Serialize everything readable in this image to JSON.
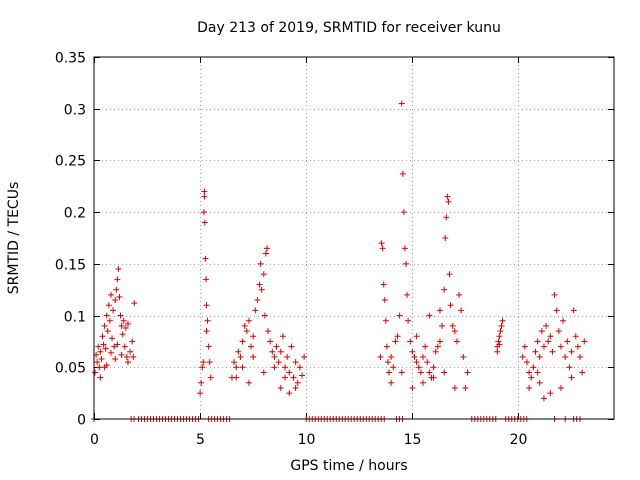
{
  "chart_data": {
    "type": "scatter",
    "title": "Day 213 of 2019, SRMTID for receiver kunu",
    "xlabel": "GPS time / hours",
    "ylabel": "SRMTID / TECUs",
    "xlim": [
      0,
      24.5
    ],
    "ylim": [
      0,
      0.35
    ],
    "xticks": [
      0,
      5,
      10,
      15,
      20
    ],
    "xtick_labels": [
      "0",
      "5",
      "10",
      "15",
      "20"
    ],
    "yticks": [
      0,
      0.05,
      0.1,
      0.15,
      0.2,
      0.25,
      0.3,
      0.35
    ],
    "ytick_labels": [
      "0",
      "0.05",
      "0.1",
      "0.15",
      "0.2",
      "0.25",
      "0.3",
      "0.35"
    ],
    "grid": true,
    "marker": "+",
    "color": "#e00000",
    "series": [
      {
        "name": "SRMTID",
        "points": [
          [
            0.05,
            0.045
          ],
          [
            0.1,
            0.062
          ],
          [
            0.15,
            0.055
          ],
          [
            0.2,
            0.07
          ],
          [
            0.25,
            0.05
          ],
          [
            0.3,
            0.065
          ],
          [
            0.35,
            0.058
          ],
          [
            0.4,
            0.08
          ],
          [
            0.45,
            0.072
          ],
          [
            0.5,
            0.09
          ],
          [
            0.55,
            0.068
          ],
          [
            0.6,
            0.1
          ],
          [
            0.65,
            0.085
          ],
          [
            0.7,
            0.11
          ],
          [
            0.75,
            0.095
          ],
          [
            0.8,
            0.12
          ],
          [
            0.85,
            0.078
          ],
          [
            0.9,
            0.105
          ],
          [
            0.95,
            0.07
          ],
          [
            1.0,
            0.115
          ],
          [
            1.05,
            0.125
          ],
          [
            1.1,
            0.135
          ],
          [
            1.15,
            0.145
          ],
          [
            1.2,
            0.118
          ],
          [
            1.25,
            0.1
          ],
          [
            1.3,
            0.09
          ],
          [
            1.35,
            0.082
          ],
          [
            1.4,
            0.095
          ],
          [
            1.45,
            0.07
          ],
          [
            1.5,
            0.088
          ],
          [
            1.55,
            0.06
          ],
          [
            1.6,
            0.092
          ],
          [
            1.7,
            0.065
          ],
          [
            1.8,
            0.075
          ],
          [
            1.85,
            0.06
          ],
          [
            1.9,
            0.112
          ],
          [
            0.3,
            0.04
          ],
          [
            0.6,
            0.052
          ],
          [
            1.0,
            0.058
          ],
          [
            1.3,
            0.062
          ],
          [
            0.8,
            0.064
          ],
          [
            1.1,
            0.072
          ],
          [
            0.5,
            0.05
          ],
          [
            1.6,
            0.055
          ],
          [
            5.0,
            0.025
          ],
          [
            5.05,
            0.035
          ],
          [
            5.1,
            0.05
          ],
          [
            5.15,
            0.055
          ],
          [
            5.18,
            0.2
          ],
          [
            5.2,
            0.22
          ],
          [
            5.22,
            0.19
          ],
          [
            5.25,
            0.155
          ],
          [
            5.28,
            0.135
          ],
          [
            5.3,
            0.085
          ],
          [
            5.35,
            0.095
          ],
          [
            5.4,
            0.07
          ],
          [
            5.45,
            0.055
          ],
          [
            5.5,
            0.04
          ],
          [
            5.2,
            0.215
          ],
          [
            5.3,
            0.11
          ],
          [
            6.5,
            0.04
          ],
          [
            6.6,
            0.055
          ],
          [
            6.7,
            0.05
          ],
          [
            6.8,
            0.065
          ],
          [
            6.9,
            0.06
          ],
          [
            7.0,
            0.075
          ],
          [
            7.1,
            0.09
          ],
          [
            7.2,
            0.085
          ],
          [
            7.3,
            0.095
          ],
          [
            7.4,
            0.07
          ],
          [
            7.5,
            0.08
          ],
          [
            7.6,
            0.105
          ],
          [
            7.7,
            0.115
          ],
          [
            7.8,
            0.13
          ],
          [
            7.85,
            0.15
          ],
          [
            7.9,
            0.125
          ],
          [
            8.0,
            0.14
          ],
          [
            8.05,
            0.1
          ],
          [
            8.1,
            0.16
          ],
          [
            8.15,
            0.165
          ],
          [
            8.2,
            0.085
          ],
          [
            8.3,
            0.075
          ],
          [
            8.4,
            0.065
          ],
          [
            8.5,
            0.06
          ],
          [
            8.6,
            0.07
          ],
          [
            8.7,
            0.055
          ],
          [
            8.8,
            0.065
          ],
          [
            8.9,
            0.08
          ],
          [
            9.0,
            0.05
          ],
          [
            9.1,
            0.06
          ],
          [
            9.2,
            0.045
          ],
          [
            9.3,
            0.07
          ],
          [
            9.4,
            0.04
          ],
          [
            9.5,
            0.055
          ],
          [
            9.6,
            0.035
          ],
          [
            9.7,
            0.05
          ],
          [
            9.8,
            0.042
          ],
          [
            9.9,
            0.06
          ],
          [
            6.7,
            0.04
          ],
          [
            7.0,
            0.05
          ],
          [
            7.5,
            0.06
          ],
          [
            8.0,
            0.045
          ],
          [
            8.5,
            0.05
          ],
          [
            9.0,
            0.04
          ],
          [
            9.5,
            0.03
          ],
          [
            9.2,
            0.025
          ],
          [
            8.8,
            0.03
          ],
          [
            7.3,
            0.035
          ],
          [
            13.5,
            0.06
          ],
          [
            13.55,
            0.17
          ],
          [
            13.6,
            0.165
          ],
          [
            13.65,
            0.13
          ],
          [
            13.7,
            0.115
          ],
          [
            13.75,
            0.095
          ],
          [
            13.8,
            0.07
          ],
          [
            13.85,
            0.055
          ],
          [
            13.9,
            0.045
          ],
          [
            14.0,
            0.06
          ],
          [
            14.1,
            0.05
          ],
          [
            14.2,
            0.075
          ],
          [
            14.3,
            0.08
          ],
          [
            14.4,
            0.1
          ],
          [
            14.5,
            0.305
          ],
          [
            14.55,
            0.237
          ],
          [
            14.6,
            0.2
          ],
          [
            14.65,
            0.165
          ],
          [
            14.7,
            0.15
          ],
          [
            14.75,
            0.12
          ],
          [
            14.8,
            0.095
          ],
          [
            14.9,
            0.075
          ],
          [
            15.0,
            0.065
          ],
          [
            15.1,
            0.06
          ],
          [
            15.2,
            0.055
          ],
          [
            15.3,
            0.05
          ],
          [
            15.4,
            0.045
          ],
          [
            15.5,
            0.06
          ],
          [
            15.6,
            0.07
          ],
          [
            15.7,
            0.055
          ],
          [
            15.8,
            0.045
          ],
          [
            15.9,
            0.04
          ],
          [
            16.0,
            0.05
          ],
          [
            16.1,
            0.065
          ],
          [
            16.2,
            0.07
          ],
          [
            16.3,
            0.075
          ],
          [
            16.4,
            0.09
          ],
          [
            16.5,
            0.125
          ],
          [
            16.55,
            0.175
          ],
          [
            16.6,
            0.195
          ],
          [
            16.65,
            0.215
          ],
          [
            16.7,
            0.21
          ],
          [
            16.75,
            0.14
          ],
          [
            16.8,
            0.11
          ],
          [
            16.9,
            0.09
          ],
          [
            17.0,
            0.085
          ],
          [
            17.1,
            0.075
          ],
          [
            17.2,
            0.12
          ],
          [
            17.3,
            0.105
          ],
          [
            17.4,
            0.06
          ],
          [
            17.5,
            0.03
          ],
          [
            17.6,
            0.045
          ],
          [
            14.0,
            0.035
          ],
          [
            14.5,
            0.045
          ],
          [
            15.0,
            0.03
          ],
          [
            15.5,
            0.035
          ],
          [
            16.0,
            0.04
          ],
          [
            16.5,
            0.045
          ],
          [
            17.0,
            0.03
          ],
          [
            15.2,
            0.08
          ],
          [
            15.8,
            0.1
          ],
          [
            16.3,
            0.105
          ],
          [
            19.0,
            0.07
          ],
          [
            19.05,
            0.075
          ],
          [
            19.1,
            0.08
          ],
          [
            19.15,
            0.085
          ],
          [
            19.2,
            0.09
          ],
          [
            19.25,
            0.095
          ],
          [
            19.0,
            0.065
          ],
          [
            19.1,
            0.072
          ],
          [
            20.2,
            0.06
          ],
          [
            20.3,
            0.07
          ],
          [
            20.4,
            0.055
          ],
          [
            20.5,
            0.045
          ],
          [
            20.6,
            0.04
          ],
          [
            20.7,
            0.05
          ],
          [
            20.8,
            0.065
          ],
          [
            20.9,
            0.075
          ],
          [
            21.0,
            0.06
          ],
          [
            21.1,
            0.085
          ],
          [
            21.2,
            0.07
          ],
          [
            21.3,
            0.09
          ],
          [
            21.4,
            0.075
          ],
          [
            21.5,
            0.08
          ],
          [
            21.6,
            0.065
          ],
          [
            21.7,
            0.12
          ],
          [
            21.8,
            0.105
          ],
          [
            21.9,
            0.085
          ],
          [
            22.0,
            0.07
          ],
          [
            22.1,
            0.095
          ],
          [
            22.2,
            0.06
          ],
          [
            22.3,
            0.075
          ],
          [
            22.4,
            0.05
          ],
          [
            22.5,
            0.065
          ],
          [
            22.6,
            0.105
          ],
          [
            22.7,
            0.08
          ],
          [
            22.8,
            0.07
          ],
          [
            22.9,
            0.06
          ],
          [
            23.0,
            0.045
          ],
          [
            23.1,
            0.075
          ],
          [
            20.5,
            0.03
          ],
          [
            21.0,
            0.035
          ],
          [
            21.5,
            0.025
          ],
          [
            22.0,
            0.03
          ],
          [
            22.5,
            0.04
          ],
          [
            21.2,
            0.02
          ],
          [
            20.9,
            0.045
          ]
        ],
        "zero_runs": [
          [
            0.0,
            0.05
          ],
          [
            1.75,
            1.95
          ],
          [
            2.1,
            4.95
          ],
          [
            5.4,
            6.45
          ],
          [
            10.0,
            13.7
          ],
          [
            14.25,
            14.55
          ],
          [
            17.8,
            19.0
          ],
          [
            19.4,
            20.4
          ],
          [
            21.7,
            21.75
          ],
          [
            22.2,
            22.3
          ],
          [
            22.6,
            22.75
          ],
          [
            22.9,
            23.0
          ]
        ]
      }
    ]
  }
}
